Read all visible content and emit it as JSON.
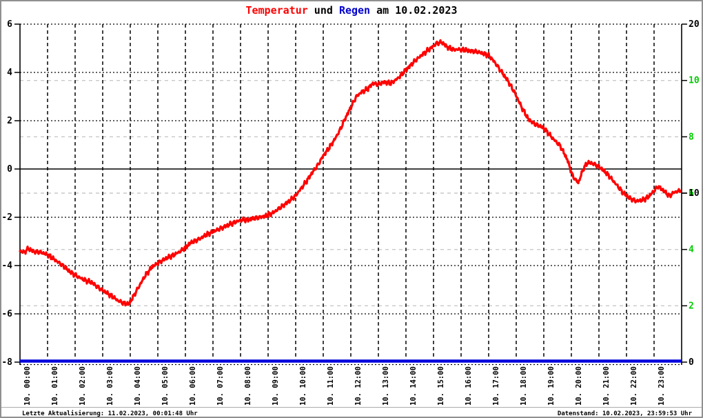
{
  "title": {
    "t1": "Temperatur",
    "t2": " und ",
    "t3": "Regen",
    "t4": " am 10.02.2023"
  },
  "footer": {
    "left": "Letzte Aktualisierung: 11.02.2023, 00:01:48 Uhr",
    "right": "Datenstand: 10.02.2023, 23:59:53 Uhr"
  },
  "colors": {
    "temperature": "#ff0000",
    "rain": "#0000dd",
    "right_axis_green": "#00cc00",
    "grid_black": "#000000",
    "grid_gray": "#c8c8c8",
    "axis_black": "#000000"
  },
  "chart_data": {
    "type": "line",
    "title": "Temperatur und Regen am 10.02.2023",
    "grid": "on",
    "x_axis": {
      "range_hours": [
        0,
        24
      ],
      "tick_labels": [
        "10. 00:00",
        "10. 01:00",
        "10. 02:00",
        "10. 03:00",
        "10. 04:00",
        "10. 05:00",
        "10. 06:00",
        "10. 07:00",
        "10. 08:00",
        "10. 09:00",
        "10. 10:00",
        "10. 11:00",
        "10. 12:00",
        "10. 13:00",
        "10. 14:00",
        "10. 15:00",
        "10. 16:00",
        "10. 17:00",
        "10. 18:00",
        "10. 19:00",
        "10. 20:00",
        "10. 21:00",
        "10. 22:00",
        "10. 23:00"
      ]
    },
    "y_axis_left": {
      "name": "Temperatur",
      "color": "#000000",
      "range": [
        -8,
        6
      ],
      "ticks": [
        6,
        4,
        2,
        0,
        -2,
        -4,
        -6,
        -8
      ]
    },
    "y_axis_right_green": {
      "name": "Regen",
      "color": "#00cc00",
      "range": [
        0,
        12
      ],
      "ticks": [
        10,
        8,
        6,
        4,
        2
      ]
    },
    "y_axis_right_black": {
      "color": "#000000",
      "range": [
        0,
        20
      ],
      "ticks": [
        20,
        10,
        0
      ]
    },
    "series": [
      {
        "name": "Temperatur",
        "color": "#ff0000",
        "axis": "left",
        "points_hour_degC": [
          [
            0,
            -3.4
          ],
          [
            0.15,
            -3.45
          ],
          [
            0.3,
            -3.3
          ],
          [
            0.5,
            -3.42
          ],
          [
            0.75,
            -3.45
          ],
          [
            1,
            -3.55
          ],
          [
            1.25,
            -3.75
          ],
          [
            1.5,
            -3.95
          ],
          [
            1.75,
            -4.2
          ],
          [
            2,
            -4.4
          ],
          [
            2.3,
            -4.58
          ],
          [
            2.6,
            -4.7
          ],
          [
            2.9,
            -4.95
          ],
          [
            3.1,
            -5.1
          ],
          [
            3.35,
            -5.28
          ],
          [
            3.55,
            -5.45
          ],
          [
            3.75,
            -5.55
          ],
          [
            3.95,
            -5.6
          ],
          [
            4.1,
            -5.3
          ],
          [
            4.3,
            -4.9
          ],
          [
            4.55,
            -4.4
          ],
          [
            4.8,
            -4.05
          ],
          [
            5,
            -3.9
          ],
          [
            5.3,
            -3.7
          ],
          [
            5.6,
            -3.55
          ],
          [
            5.9,
            -3.35
          ],
          [
            6.2,
            -3.05
          ],
          [
            6.5,
            -2.9
          ],
          [
            6.8,
            -2.7
          ],
          [
            7.1,
            -2.55
          ],
          [
            7.4,
            -2.4
          ],
          [
            7.7,
            -2.25
          ],
          [
            8,
            -2.12
          ],
          [
            8.3,
            -2.1
          ],
          [
            8.6,
            -2.02
          ],
          [
            8.9,
            -1.95
          ],
          [
            9.2,
            -1.8
          ],
          [
            9.5,
            -1.55
          ],
          [
            9.8,
            -1.3
          ],
          [
            10,
            -1.1
          ],
          [
            10.2,
            -0.8
          ],
          [
            10.4,
            -0.5
          ],
          [
            10.6,
            -0.15
          ],
          [
            10.8,
            0.15
          ],
          [
            11,
            0.55
          ],
          [
            11.2,
            0.85
          ],
          [
            11.4,
            1.2
          ],
          [
            11.6,
            1.6
          ],
          [
            11.8,
            2.1
          ],
          [
            12,
            2.55
          ],
          [
            12.2,
            3
          ],
          [
            12.4,
            3.2
          ],
          [
            12.6,
            3.3
          ],
          [
            12.8,
            3.55
          ],
          [
            13,
            3.5
          ],
          [
            13.2,
            3.6
          ],
          [
            13.45,
            3.55
          ],
          [
            13.7,
            3.75
          ],
          [
            14,
            4.1
          ],
          [
            14.3,
            4.45
          ],
          [
            14.6,
            4.75
          ],
          [
            14.9,
            5
          ],
          [
            15.1,
            5.2
          ],
          [
            15.3,
            5.25
          ],
          [
            15.5,
            5.05
          ],
          [
            15.7,
            4.95
          ],
          [
            16,
            4.95
          ],
          [
            16.3,
            4.9
          ],
          [
            16.6,
            4.85
          ],
          [
            16.9,
            4.75
          ],
          [
            17.05,
            4.65
          ],
          [
            17.2,
            4.45
          ],
          [
            17.45,
            4.05
          ],
          [
            17.7,
            3.65
          ],
          [
            17.95,
            3.15
          ],
          [
            18.2,
            2.55
          ],
          [
            18.45,
            2.05
          ],
          [
            18.7,
            1.85
          ],
          [
            19,
            1.7
          ],
          [
            19.3,
            1.3
          ],
          [
            19.6,
            0.95
          ],
          [
            19.85,
            0.4
          ],
          [
            20.05,
            -0.3
          ],
          [
            20.25,
            -0.58
          ],
          [
            20.45,
            0.05
          ],
          [
            20.6,
            0.27
          ],
          [
            20.8,
            0.22
          ],
          [
            21,
            0.1
          ],
          [
            21.3,
            -0.2
          ],
          [
            21.6,
            -0.6
          ],
          [
            21.85,
            -0.95
          ],
          [
            22.1,
            -1.2
          ],
          [
            22.35,
            -1.33
          ],
          [
            22.6,
            -1.28
          ],
          [
            22.8,
            -1.15
          ],
          [
            23,
            -0.9
          ],
          [
            23.15,
            -0.72
          ],
          [
            23.35,
            -0.9
          ],
          [
            23.55,
            -1.12
          ],
          [
            23.75,
            -0.95
          ],
          [
            23.95,
            -0.9
          ]
        ]
      },
      {
        "name": "Regen",
        "color": "#0000dd",
        "axis": "right_green",
        "points_hour_mm": [
          [
            0,
            0
          ],
          [
            24,
            0
          ]
        ]
      }
    ]
  }
}
